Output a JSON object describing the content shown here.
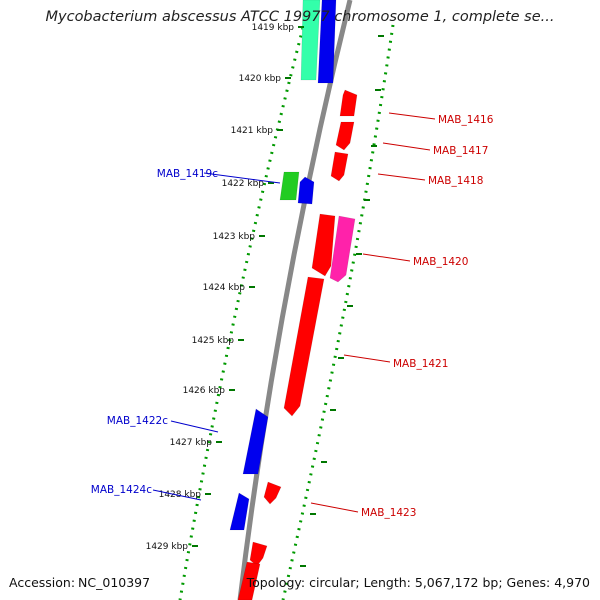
{
  "title": "Mycobacterium abscessus ATCC 19977 chromosome 1, complete se...",
  "footer": {
    "accession_label": "Accession:",
    "accession": "NC_010397",
    "topology_text": "Topology: circular; Length: 5,067,172 bp; Genes: 4,970"
  },
  "ticks": [
    {
      "label": "1419 kbp",
      "kbp": 1419
    },
    {
      "label": "1420 kbp",
      "kbp": 1420
    },
    {
      "label": "1421 kbp",
      "kbp": 1421
    },
    {
      "label": "1422 kbp",
      "kbp": 1422
    },
    {
      "label": "1423 kbp",
      "kbp": 1423
    },
    {
      "label": "1424 kbp",
      "kbp": 1424
    },
    {
      "label": "1425 kbp",
      "kbp": 1425
    },
    {
      "label": "1426 kbp",
      "kbp": 1426
    },
    {
      "label": "1427 kbp",
      "kbp": 1427
    },
    {
      "label": "1428 kbp",
      "kbp": 1428
    },
    {
      "label": "1429 kbp",
      "kbp": 1429
    }
  ],
  "gene_labels": [
    {
      "text": "MAB_1416",
      "strand": "forward"
    },
    {
      "text": "MAB_1417",
      "strand": "forward"
    },
    {
      "text": "MAB_1418",
      "strand": "forward"
    },
    {
      "text": "MAB_1419c",
      "strand": "reverse"
    },
    {
      "text": "MAB_1420",
      "strand": "forward"
    },
    {
      "text": "MAB_1421",
      "strand": "forward"
    },
    {
      "text": "MAB_1422c",
      "strand": "reverse"
    },
    {
      "text": "MAB_1423",
      "strand": "forward"
    },
    {
      "text": "MAB_1424c",
      "strand": "reverse"
    }
  ],
  "colors": {
    "forward_gene": "#ff0000",
    "reverse_gene": "#0000ee",
    "forward_label": "#cc0000",
    "reverse_label": "#0000cc",
    "teal_gene": "#33ffaa",
    "green_gene": "#22cc22",
    "pink_gene": "#ff22aa",
    "backbone": "#888888",
    "dotted_ring": "#009900",
    "tick_mark": "#007700"
  }
}
